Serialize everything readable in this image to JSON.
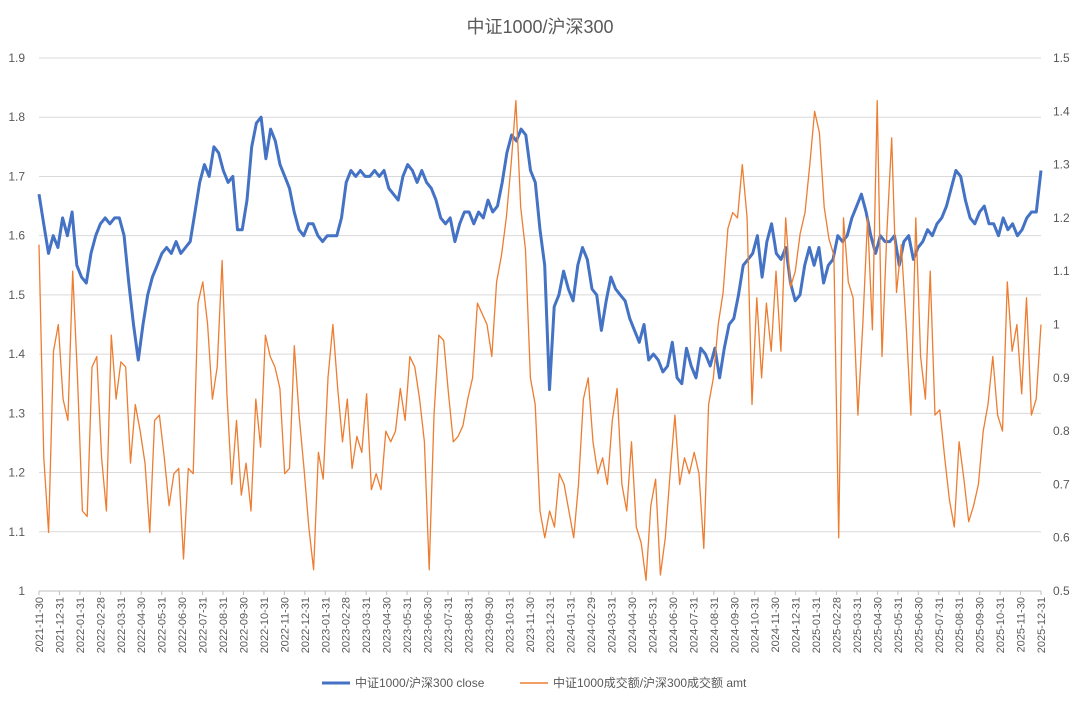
{
  "chart_data": {
    "type": "line",
    "title": "中证1000/沪深300",
    "x_tick_labels": [
      "2021-11-30",
      "2021-12-31",
      "2022-01-31",
      "2022-02-28",
      "2022-03-31",
      "2022-04-30",
      "2022-05-31",
      "2022-06-30",
      "2022-07-31",
      "2022-08-31",
      "2022-09-30",
      "2022-10-31",
      "2022-11-30",
      "2022-12-31",
      "2023-01-31",
      "2023-02-28",
      "2023-03-31",
      "2023-04-30",
      "2023-05-31",
      "2023-06-30",
      "2023-07-31",
      "2023-08-31",
      "2023-09-30",
      "2023-10-31",
      "2023-11-30",
      "2023-12-31",
      "2024-01-31",
      "2024-02-29",
      "2024-03-31",
      "2024-04-30",
      "2024-05-31",
      "2024-06-30",
      "2024-07-31",
      "2024-08-31",
      "2024-09-30",
      "2024-10-31",
      "2024-11-30",
      "2024-12-31",
      "2025-01-31",
      "2025-02-28",
      "2025-03-31",
      "2025-04-30",
      "2025-05-31",
      "2025-06-30",
      "2025-07-31",
      "2025-08-31",
      "2025-09-30",
      "2025-10-31",
      "2025-11-30",
      "2025-12-31"
    ],
    "y_left": {
      "min": 1,
      "max": 1.9,
      "ticks": [
        "1",
        "1.1",
        "1.2",
        "1.3",
        "1.4",
        "1.5",
        "1.6",
        "1.7",
        "1.8",
        "1.9"
      ]
    },
    "y_right": {
      "min": 0.5,
      "max": 1.5,
      "ticks": [
        "0.5",
        "0.6",
        "0.7",
        "0.8",
        "0.9",
        "1",
        "1.1",
        "1.2",
        "1.3",
        "1.4",
        "1.5"
      ]
    },
    "grid": true,
    "legend_position": "bottom",
    "series": [
      {
        "name": "中证1000/沪深300 close",
        "axis": "left",
        "color": "#4472C4",
        "values": [
          1.67,
          1.62,
          1.57,
          1.6,
          1.58,
          1.63,
          1.6,
          1.64,
          1.55,
          1.53,
          1.52,
          1.57,
          1.6,
          1.62,
          1.63,
          1.62,
          1.63,
          1.63,
          1.6,
          1.52,
          1.45,
          1.39,
          1.45,
          1.5,
          1.53,
          1.55,
          1.57,
          1.58,
          1.57,
          1.59,
          1.57,
          1.58,
          1.59,
          1.64,
          1.69,
          1.72,
          1.7,
          1.75,
          1.74,
          1.71,
          1.69,
          1.7,
          1.61,
          1.61,
          1.66,
          1.75,
          1.79,
          1.8,
          1.73,
          1.78,
          1.76,
          1.72,
          1.7,
          1.68,
          1.64,
          1.61,
          1.6,
          1.62,
          1.62,
          1.6,
          1.59,
          1.6,
          1.6,
          1.6,
          1.63,
          1.69,
          1.71,
          1.7,
          1.71,
          1.7,
          1.7,
          1.71,
          1.7,
          1.71,
          1.68,
          1.67,
          1.66,
          1.7,
          1.72,
          1.71,
          1.69,
          1.71,
          1.69,
          1.68,
          1.66,
          1.63,
          1.62,
          1.63,
          1.59,
          1.62,
          1.64,
          1.64,
          1.62,
          1.64,
          1.63,
          1.66,
          1.64,
          1.65,
          1.69,
          1.74,
          1.77,
          1.76,
          1.78,
          1.77,
          1.71,
          1.69,
          1.61,
          1.55,
          1.34,
          1.48,
          1.5,
          1.54,
          1.51,
          1.49,
          1.55,
          1.58,
          1.56,
          1.51,
          1.5,
          1.44,
          1.49,
          1.53,
          1.51,
          1.5,
          1.49,
          1.46,
          1.44,
          1.42,
          1.45,
          1.39,
          1.4,
          1.39,
          1.37,
          1.38,
          1.42,
          1.36,
          1.35,
          1.41,
          1.38,
          1.36,
          1.41,
          1.4,
          1.38,
          1.41,
          1.36,
          1.41,
          1.45,
          1.46,
          1.5,
          1.55,
          1.56,
          1.57,
          1.6,
          1.53,
          1.59,
          1.62,
          1.57,
          1.56,
          1.58,
          1.52,
          1.49,
          1.5,
          1.55,
          1.58,
          1.55,
          1.58,
          1.52,
          1.55,
          1.56,
          1.6,
          1.59,
          1.6,
          1.63,
          1.65,
          1.67,
          1.64,
          1.6,
          1.57,
          1.6,
          1.59,
          1.59,
          1.6,
          1.55,
          1.59,
          1.6,
          1.56,
          1.58,
          1.59,
          1.61,
          1.6,
          1.62,
          1.63,
          1.65,
          1.68,
          1.71,
          1.7,
          1.66,
          1.63,
          1.62,
          1.64,
          1.65,
          1.62,
          1.62,
          1.6,
          1.63,
          1.61,
          1.62,
          1.6,
          1.61,
          1.63,
          1.64,
          1.64,
          1.71
        ],
        "note_unused": null
      },
      {
        "name": "中证1000成交额/沪深300成交额 amt",
        "axis": "right",
        "color": "#ED7D31",
        "values": [
          1.15,
          0.75,
          0.61,
          0.95,
          1.0,
          0.86,
          0.82,
          1.1,
          0.9,
          0.65,
          0.64,
          0.92,
          0.94,
          0.75,
          0.65,
          0.98,
          0.86,
          0.93,
          0.92,
          0.74,
          0.85,
          0.8,
          0.74,
          0.61,
          0.82,
          0.83,
          0.75,
          0.66,
          0.72,
          0.73,
          0.56,
          0.73,
          0.72,
          1.04,
          1.08,
          1.0,
          0.86,
          0.92,
          1.12,
          0.87,
          0.7,
          0.82,
          0.68,
          0.74,
          0.65,
          0.86,
          0.77,
          0.98,
          0.94,
          0.92,
          0.88,
          0.72,
          0.73,
          0.96,
          0.83,
          0.73,
          0.62,
          0.54,
          0.76,
          0.71,
          0.9,
          1.0,
          0.88,
          0.78,
          0.86,
          0.73,
          0.79,
          0.76,
          0.87,
          0.69,
          0.72,
          0.69,
          0.8,
          0.78,
          0.8,
          0.88,
          0.82,
          0.94,
          0.92,
          0.86,
          0.78,
          0.54,
          0.83,
          0.98,
          0.97,
          0.87,
          0.78,
          0.79,
          0.81,
          0.86,
          0.9,
          1.04,
          1.02,
          1.0,
          0.94,
          1.08,
          1.13,
          1.2,
          1.3,
          1.42,
          1.22,
          1.14,
          0.9,
          0.85,
          0.65,
          0.6,
          0.65,
          0.62,
          0.72,
          0.7,
          0.65,
          0.6,
          0.7,
          0.86,
          0.9,
          0.78,
          0.72,
          0.75,
          0.7,
          0.82,
          0.88,
          0.7,
          0.65,
          0.78,
          0.62,
          0.59,
          0.52,
          0.66,
          0.71,
          0.53,
          0.6,
          0.72,
          0.83,
          0.7,
          0.75,
          0.72,
          0.76,
          0.72,
          0.58,
          0.85,
          0.9,
          1.0,
          1.06,
          1.18,
          1.21,
          1.2,
          1.3,
          1.2,
          0.85,
          1.05,
          0.9,
          1.04,
          0.95,
          1.1,
          0.95,
          1.2,
          1.07,
          1.1,
          1.17,
          1.21,
          1.3,
          1.4,
          1.36,
          1.22,
          1.16,
          1.13,
          0.6,
          1.2,
          1.08,
          1.05,
          0.83,
          1.0,
          1.2,
          0.99,
          1.42,
          0.94,
          1.17,
          1.35,
          1.06,
          1.15,
          1.0,
          0.83,
          1.2,
          0.94,
          0.86,
          1.1,
          0.83,
          0.84,
          0.75,
          0.67,
          0.62,
          0.78,
          0.71,
          0.63,
          0.66,
          0.7,
          0.8,
          0.85,
          0.94,
          0.83,
          0.8,
          1.08,
          0.95,
          1.0,
          0.87,
          1.05,
          0.83,
          0.86,
          1.0
        ]
      }
    ]
  }
}
